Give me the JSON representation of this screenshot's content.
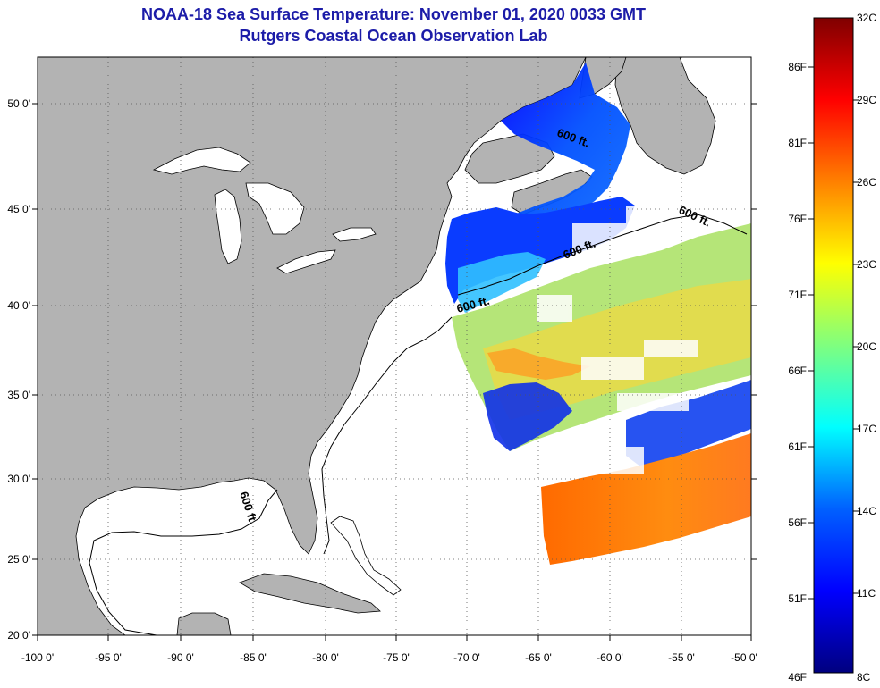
{
  "header": {
    "title_line1": "NOAA-18 Sea Surface Temperature:  November 01, 2020 0033 GMT",
    "title_line2": "Rutgers Coastal Ocean Observation Lab"
  },
  "map": {
    "lon_ticks": [
      "-100 0'",
      "-95 0'",
      "-90 0'",
      "-85 0'",
      "-80 0'",
      "-75 0'",
      "-70 0'",
      "-65 0'",
      "-60 0'",
      "-55 0'",
      "-50 0'"
    ],
    "lat_ticks": [
      "50 0'",
      "45 0'",
      "40 0'",
      "35 0'",
      "30 0'",
      "25 0'",
      "20 0'"
    ],
    "contour_labels": [
      "600 ft.",
      "600 ft.",
      "600 ft.",
      "600 ft.",
      "600 ft."
    ],
    "colors": {
      "land": "#b3b3b3",
      "ocean_nodata": "#ffffff",
      "gridline": "#555555"
    }
  },
  "colorbar": {
    "fahrenheit_labels": [
      "86F",
      "81F",
      "76F",
      "71F",
      "66F",
      "61F",
      "56F",
      "51F",
      "46F"
    ],
    "celsius_labels": [
      "32C",
      "29C",
      "26C",
      "23C",
      "20C",
      "17C",
      "14C",
      "11C",
      "8C"
    ],
    "colors": [
      "#00007f",
      "#0000ff",
      "#007fff",
      "#00ffff",
      "#7fff7f",
      "#ffff00",
      "#ff7f00",
      "#ff0000",
      "#7f0000"
    ]
  }
}
